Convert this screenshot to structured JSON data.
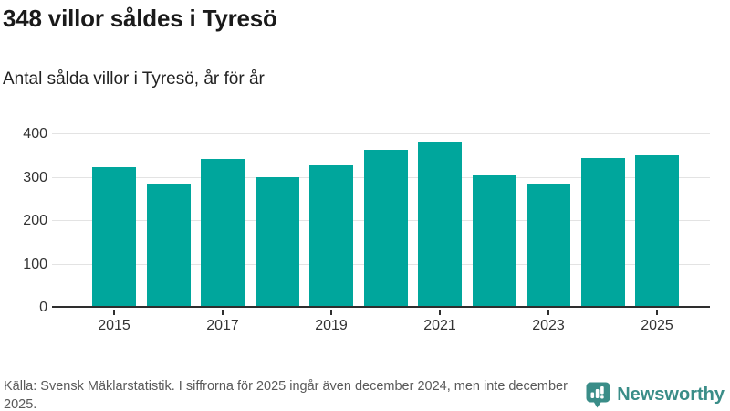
{
  "header": {
    "title": "348 villor såldes i Tyresö",
    "subtitle": "Antal sålda villor i Tyresö, år för år"
  },
  "chart_data": {
    "type": "bar",
    "title": "348 villor såldes i Tyresö",
    "subtitle": "Antal sålda villor i Tyresö, år för år",
    "categories": [
      "2015",
      "2016",
      "2017",
      "2018",
      "2019",
      "2020",
      "2021",
      "2022",
      "2023",
      "2024",
      "2025"
    ],
    "values": [
      321,
      281,
      339,
      296,
      324,
      361,
      380,
      301,
      279,
      342,
      348
    ],
    "xlabel": "",
    "ylabel": "",
    "ylim": [
      0,
      400
    ],
    "y_ticks": [
      0,
      100,
      200,
      300,
      400
    ],
    "x_tick_labels": [
      "2015",
      "2017",
      "2019",
      "2021",
      "2023",
      "2025"
    ],
    "grid": true,
    "legend": "none",
    "bar_color": "#00a69c"
  },
  "footer": {
    "source_text": "Källa: Svensk Mäklarstatistik. I siffrorna för 2025 ingår även december 2024, men inte december 2025.",
    "brand_name": "Newsworthy"
  },
  "colors": {
    "bar": "#00a69c",
    "brand_teal": "#3a8d88",
    "axis_line": "#2e2e2e",
    "gridline": "#e3e3e3",
    "axis_text": "#333333",
    "title_text": "#1a1a1a",
    "footer_text": "#595959",
    "background": "#ffffff"
  }
}
